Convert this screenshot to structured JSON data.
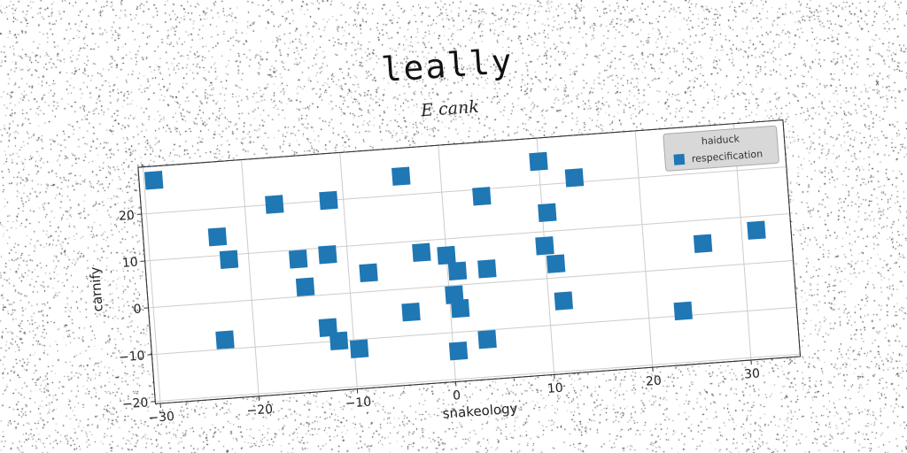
{
  "chart_data": {
    "type": "scatter",
    "title": "leally",
    "subtitle": "E cank",
    "xlabel": "snakeology",
    "ylabel": "carnify",
    "xlim": [
      -30.5,
      35
    ],
    "ylim": [
      -20.5,
      30
    ],
    "xticks": [
      -30,
      -20,
      -10,
      0,
      10,
      20,
      30
    ],
    "yticks": [
      -20,
      -10,
      0,
      10,
      20
    ],
    "xtick_labels": [
      "−30",
      "−20",
      "−10",
      "0",
      "10",
      "20",
      "30"
    ],
    "ytick_labels": [
      "−20",
      "−10",
      "0",
      "10",
      "20"
    ],
    "grid": true,
    "legend": {
      "title": "haiduck",
      "position": "top-right"
    },
    "marker": "square",
    "colors": {
      "series": "#1f77b4",
      "legend_bg": "#d8d8d8",
      "grid": "#cccccc"
    },
    "series": [
      {
        "name": "respecification",
        "points": [
          [
            -29,
            27
          ],
          [
            -23,
            14
          ],
          [
            -22,
            9
          ],
          [
            -17,
            20
          ],
          [
            -15,
            8
          ],
          [
            -14.5,
            2
          ],
          [
            -12,
            8.5
          ],
          [
            -11.5,
            20
          ],
          [
            -8,
            4
          ],
          [
            -4,
            24
          ],
          [
            -2.5,
            7.5
          ],
          [
            -4,
            -5
          ],
          [
            -12.5,
            -7
          ],
          [
            -11.5,
            -10
          ],
          [
            -9.5,
            -12
          ],
          [
            -23,
            -8
          ],
          [
            0,
            6.5
          ],
          [
            1,
            3
          ],
          [
            0.5,
            -2
          ],
          [
            1,
            -5
          ],
          [
            0.5,
            -14
          ],
          [
            3.5,
            -12
          ],
          [
            4,
            3
          ],
          [
            4,
            18.5
          ],
          [
            10,
            25
          ],
          [
            13.5,
            21
          ],
          [
            10.5,
            14
          ],
          [
            10,
            7
          ],
          [
            11,
            3
          ],
          [
            11.5,
            -5
          ],
          [
            23.5,
            -9
          ],
          [
            26,
            5
          ],
          [
            31.5,
            7
          ]
        ]
      }
    ]
  }
}
